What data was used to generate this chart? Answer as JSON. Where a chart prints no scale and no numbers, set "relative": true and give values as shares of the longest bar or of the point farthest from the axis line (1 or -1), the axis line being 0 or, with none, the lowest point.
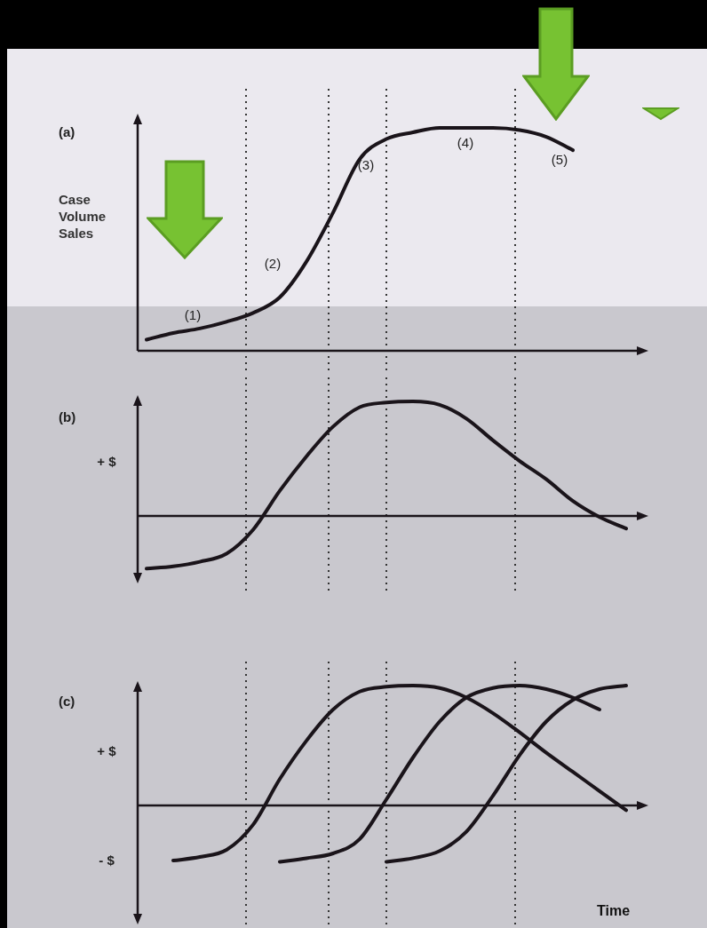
{
  "chart_data": [
    {
      "type": "line",
      "title": "(a)",
      "ylabel": "Case Volume Sales",
      "relative": true,
      "categories": [
        null,
        null,
        null,
        null,
        null,
        null,
        null,
        null,
        null,
        null,
        null,
        null,
        null,
        null,
        null,
        null,
        null,
        null,
        null
      ],
      "series": [
        {
          "color": "#1a141a",
          "values": [
            0.05,
            0.08,
            0.1,
            0.13,
            0.17,
            0.24,
            0.4,
            0.62,
            0.86,
            0.95,
            0.98,
            1.0,
            1.0,
            1.0,
            0.99,
            0.96,
            0.9,
            null,
            null
          ]
        }
      ],
      "annotations": [
        "(1)",
        "(2)",
        "(3)",
        "(4)",
        "(5)"
      ]
    },
    {
      "type": "line",
      "title": "(b)",
      "relative": true,
      "categories": [
        null,
        null,
        null,
        null,
        null,
        null,
        null,
        null,
        null,
        null,
        null,
        null,
        null,
        null,
        null,
        null,
        null,
        null,
        null
      ],
      "series": [
        {
          "color": "#1a141a",
          "values": [
            -0.46,
            -0.44,
            -0.4,
            -0.33,
            -0.12,
            0.22,
            0.52,
            0.78,
            0.95,
            0.99,
            1.0,
            0.97,
            0.85,
            0.66,
            0.48,
            0.32,
            0.13,
            -0.01,
            -0.11
          ]
        }
      ],
      "annotations": [
        "+ $"
      ]
    },
    {
      "type": "line",
      "title": "(c)",
      "xlabel": "Time",
      "relative": true,
      "categories": [
        null,
        null,
        null,
        null,
        null,
        null,
        null,
        null,
        null,
        null,
        null,
        null,
        null,
        null,
        null,
        null,
        null,
        null,
        null
      ],
      "series": [
        {
          "color": "#1a141a",
          "values": [
            null,
            -0.46,
            -0.43,
            -0.37,
            -0.16,
            0.22,
            0.54,
            0.8,
            0.95,
            0.99,
            1.0,
            0.98,
            0.9,
            0.77,
            0.61,
            0.44,
            0.28,
            0.12,
            -0.04
          ]
        },
        {
          "color": "#1a141a",
          "values": [
            null,
            null,
            null,
            null,
            null,
            -0.47,
            -0.44,
            -0.4,
            -0.28,
            0.05,
            0.4,
            0.7,
            0.9,
            0.98,
            1.0,
            0.97,
            0.9,
            0.8,
            null
          ]
        },
        {
          "color": "#1a141a",
          "values": [
            null,
            null,
            null,
            null,
            null,
            null,
            null,
            null,
            null,
            -0.47,
            -0.44,
            -0.38,
            -0.22,
            0.08,
            0.42,
            0.7,
            0.88,
            0.97,
            1.0
          ]
        }
      ],
      "annotations": [
        "+ $",
        "- $"
      ]
    }
  ]
}
